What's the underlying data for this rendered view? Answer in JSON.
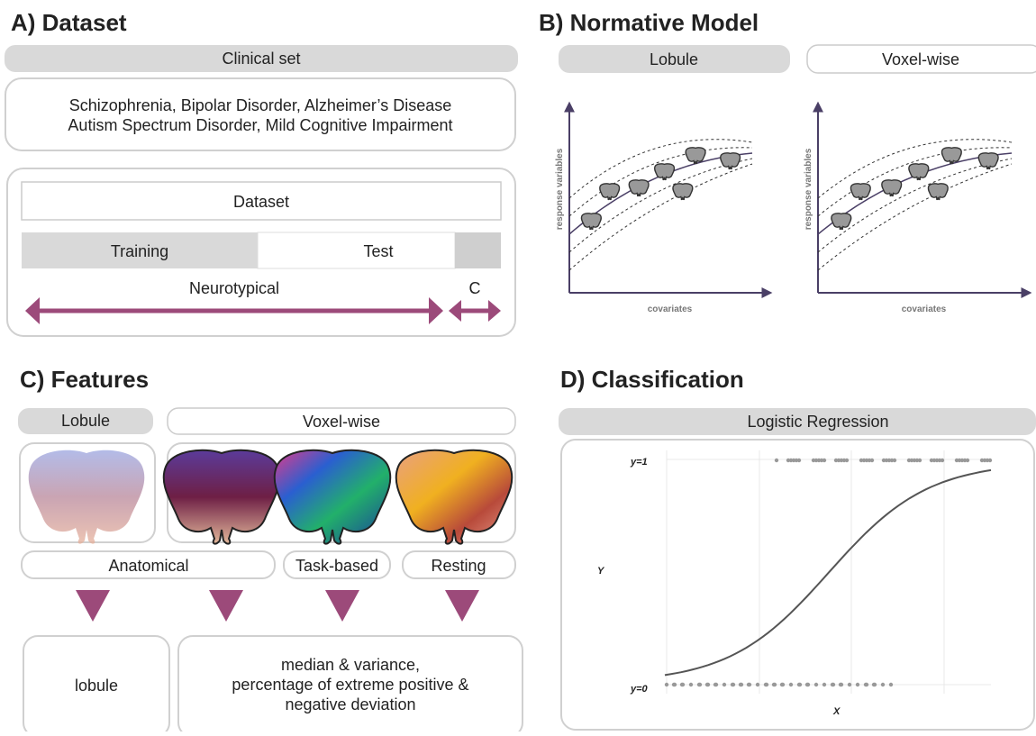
{
  "panel_a": {
    "title": "A) Dataset",
    "clinical_set": "Clinical set",
    "disorders": [
      "Schizophrenia, Bipolar Disorder, Alzheimer’s Disease",
      "Autism Spectrum Disorder, Mild Cognitive Impairment"
    ],
    "dataset": "Dataset",
    "training": "Training",
    "test": "Test",
    "neurotypical": "Neurotypical",
    "clinical_short": "C"
  },
  "panel_b": {
    "title": "B) Normative Model",
    "tabs": [
      "Lobule",
      "Voxel-wise"
    ],
    "plots": [
      {
        "y_label": "response variables",
        "x_label": "covariates"
      },
      {
        "y_label": "response variables",
        "x_label": "covariates"
      }
    ]
  },
  "panel_c": {
    "title": "C) Features",
    "tabs": [
      "Lobule",
      "Voxel-wise"
    ],
    "feature_types": [
      "Anatomical",
      "Task-based",
      "Resting"
    ],
    "outputs": {
      "lobule": "lobule",
      "voxel_lines": [
        "median & variance,",
        "percentage of extreme positive &",
        "negative deviation"
      ]
    }
  },
  "panel_d": {
    "title": "D) Classification",
    "method": "Logistic Regression",
    "y_top": "y=1",
    "y_bottom": "y=0",
    "y_label": "Y",
    "x_label": "X"
  }
}
